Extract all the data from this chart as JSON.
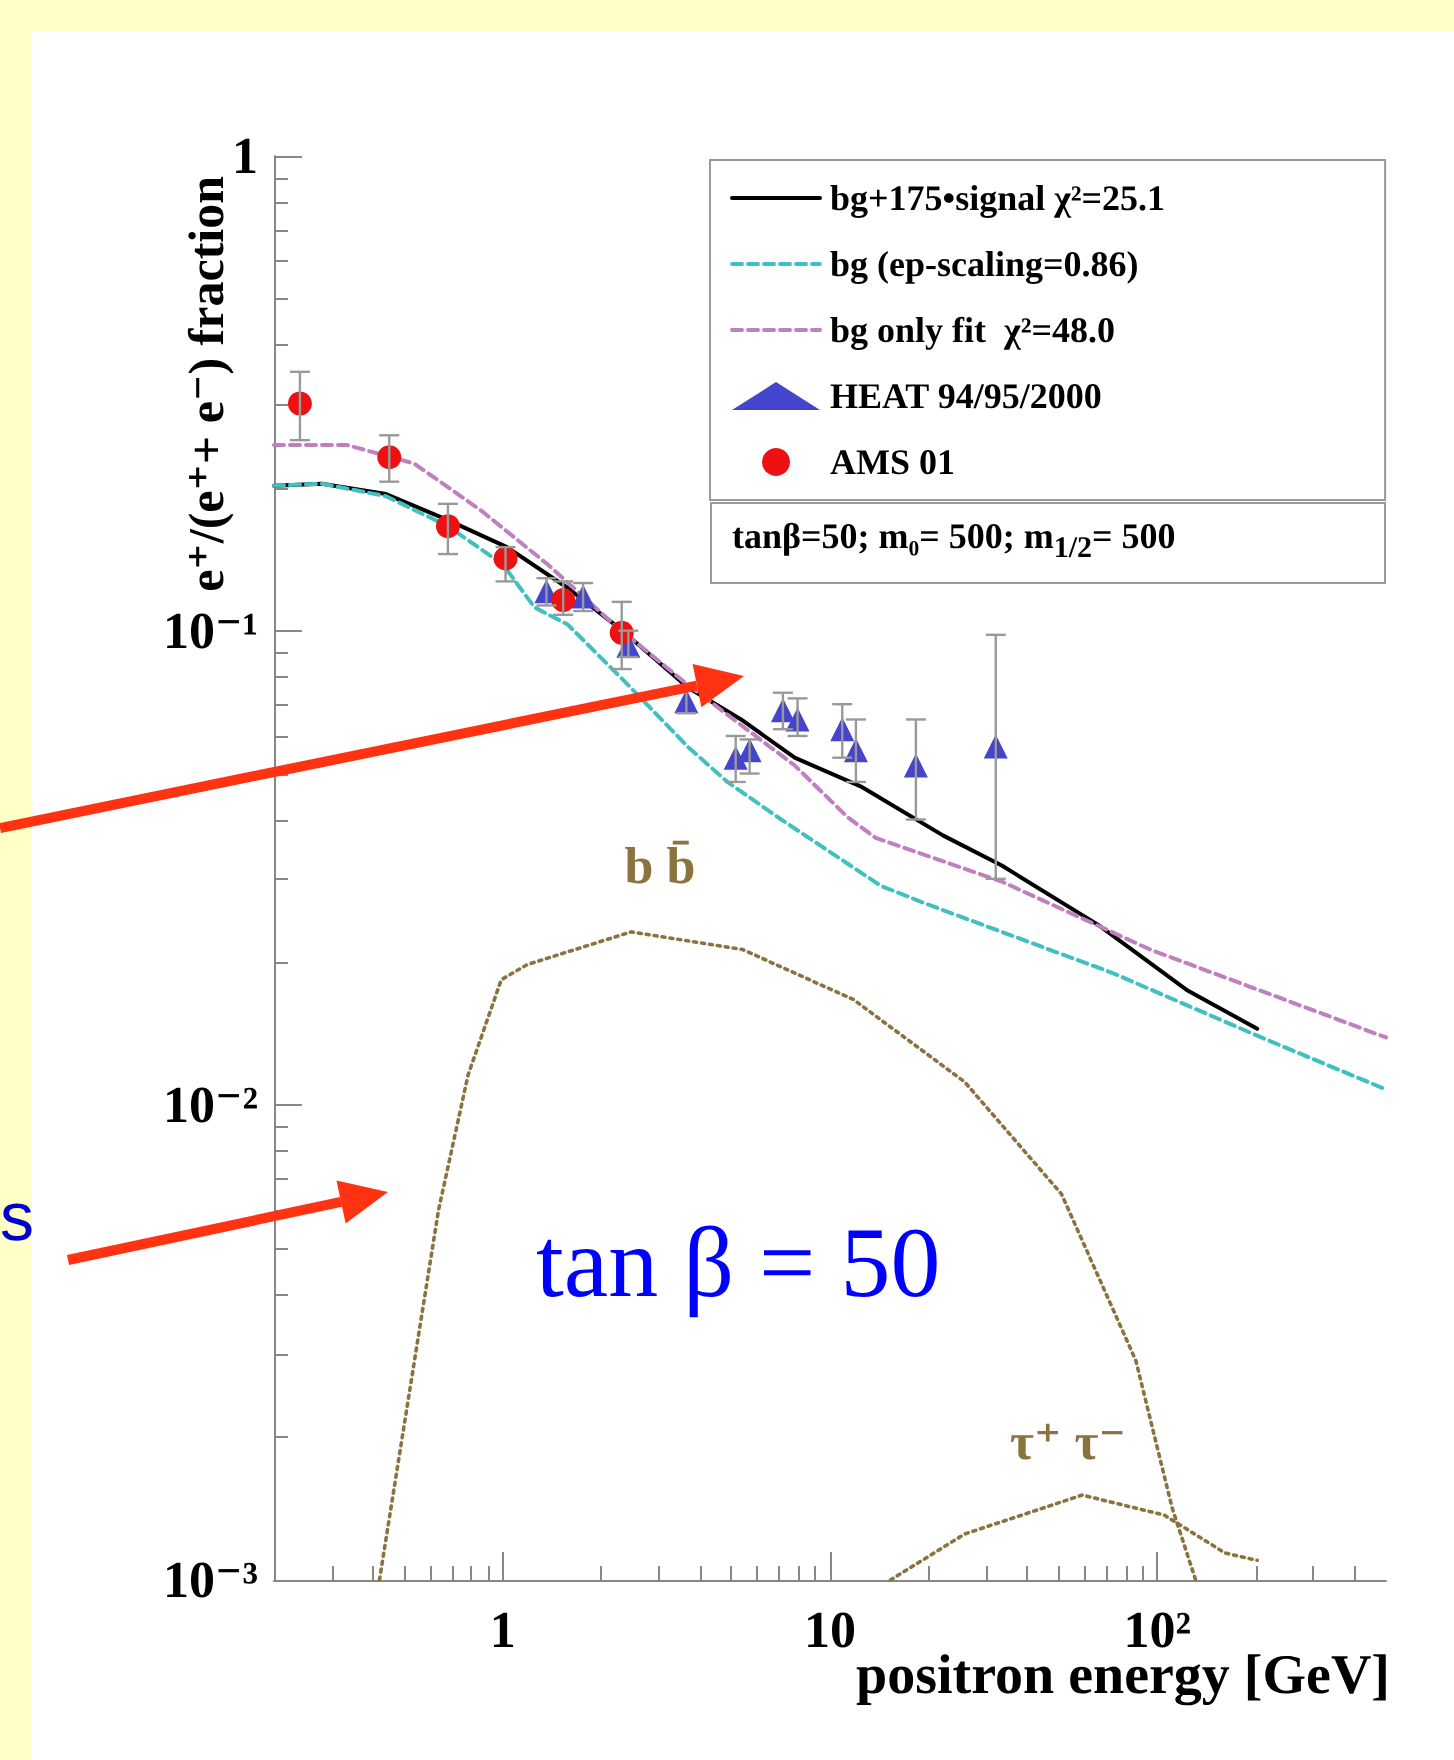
{
  "chart_data": {
    "type": "line",
    "xlabel": "positron energy [GeV]",
    "ylabel": "e⁺/(e⁺+ e⁻) fraction",
    "log": "xy",
    "xlim": [
      0.2,
      500
    ],
    "ylim": [
      0.001,
      1
    ],
    "xticks": [
      1,
      10,
      {
        "value": 100,
        "label": "10²"
      }
    ],
    "yticks": [
      {
        "value": 0.001,
        "label": "10⁻³"
      },
      {
        "value": 0.01,
        "label": "10⁻²"
      },
      {
        "value": 0.1,
        "label": "10⁻¹"
      },
      1
    ],
    "grid": false,
    "legend": "top right",
    "marker": "none",
    "annotations": [
      "tanβ=50; m₀= 500; m$_{1/2}$= 500",
      "tan β = 50",
      "s",
      "b b̄",
      "τ⁺ τ⁻"
    ],
    "series": [
      {
        "name": "bg+175•signal χ²=25.1",
        "color": "#000000",
        "line_style": "solid",
        "x": [
          0.2,
          0.28,
          0.44,
          0.68,
          1.03,
          1.58,
          2.32,
          3.67,
          5.35,
          7.8,
          12.4,
          22.2,
          33.5,
          66,
          123,
          202
        ],
        "values": [
          0.202,
          0.204,
          0.194,
          0.171,
          0.15,
          0.123,
          0.1,
          0.076,
          0.065,
          0.054,
          0.047,
          0.037,
          0.032,
          0.024,
          0.0175,
          0.0145
        ]
      },
      {
        "name": "bg (ep-scaling=0.86)",
        "color": "#40c0c0",
        "line_style": "dashed",
        "x": [
          0.2,
          0.28,
          0.44,
          0.68,
          1.0,
          1.25,
          1.58,
          2.41,
          3.67,
          4.86,
          7.1,
          14.3,
          19.9,
          73,
          208,
          500
        ],
        "values": [
          0.202,
          0.204,
          0.192,
          0.166,
          0.138,
          0.112,
          0.103,
          0.077,
          0.057,
          0.048,
          0.04,
          0.029,
          0.0265,
          0.019,
          0.0139,
          0.0108
        ]
      },
      {
        "name": "bg only fit  χ²=48.0",
        "color": "#c080c0",
        "line_style": "dashed",
        "x": [
          0.2,
          0.335,
          0.536,
          0.86,
          1.37,
          2.19,
          3.67,
          7.8,
          11.3,
          13.8,
          33.5,
          95,
          500
        ],
        "values": [
          0.246,
          0.246,
          0.225,
          0.179,
          0.138,
          0.103,
          0.077,
          0.052,
          0.0405,
          0.0366,
          0.0296,
          0.0213,
          0.0139
        ]
      },
      {
        "name": "HEAT 94/95/2000",
        "type": "scatter",
        "color": "#4444cc",
        "marker": "triangle",
        "x": [
          1.36,
          1.76,
          2.42,
          3.64,
          5.15,
          5.68,
          7.18,
          7.96,
          10.9,
          12.0,
          18.3,
          32.1
        ],
        "values": [
          0.121,
          0.118,
          0.093,
          0.071,
          0.054,
          0.056,
          0.068,
          0.065,
          0.062,
          0.056,
          0.052,
          0.057
        ],
        "errors": [
          [
            0.113,
            0.129
          ],
          [
            0.11,
            0.126
          ],
          [
            0.088,
            0.1
          ],
          [
            0.067,
            0.076
          ],
          [
            0.048,
            0.06
          ],
          [
            0.05,
            0.059
          ],
          [
            0.062,
            0.074
          ],
          [
            0.06,
            0.072
          ],
          [
            0.054,
            0.07
          ],
          [
            0.048,
            0.065
          ],
          [
            0.04,
            0.065
          ],
          [
            0.03,
            0.098
          ]
        ]
      },
      {
        "name": "AMS 01",
        "type": "scatter",
        "color": "#ee1111",
        "marker": "circle",
        "x": [
          0.24,
          0.45,
          0.68,
          1.02,
          1.53,
          2.31
        ],
        "values": [
          0.301,
          0.232,
          0.166,
          0.142,
          0.116,
          0.099
        ],
        "errors": [
          [
            0.252,
            0.351
          ],
          [
            0.206,
            0.258
          ],
          [
            0.145,
            0.185
          ],
          [
            0.127,
            0.15
          ],
          [
            0.108,
            0.127
          ],
          [
            0.083,
            0.115
          ]
        ]
      },
      {
        "color": "#8b7340",
        "line_style": "dotted",
        "x": [
          0.42,
          0.636,
          0.784,
          0.99,
          1.19,
          2.47,
          5.4,
          11.8,
          25.8,
          51,
          86,
          111,
          131
        ],
        "values": [
          0.001,
          0.006,
          0.0116,
          0.0184,
          0.0198,
          0.0232,
          0.0213,
          0.0167,
          0.0112,
          0.0065,
          0.0029,
          0.00142,
          0.001
        ]
      },
      {
        "color": "#8b7340",
        "line_style": "dotted",
        "x": [
          15.3,
          25.8,
          59,
          105,
          161,
          202
        ],
        "values": [
          0.001,
          0.00125,
          0.00151,
          0.00137,
          0.00114,
          0.0011
        ]
      }
    ]
  }
}
